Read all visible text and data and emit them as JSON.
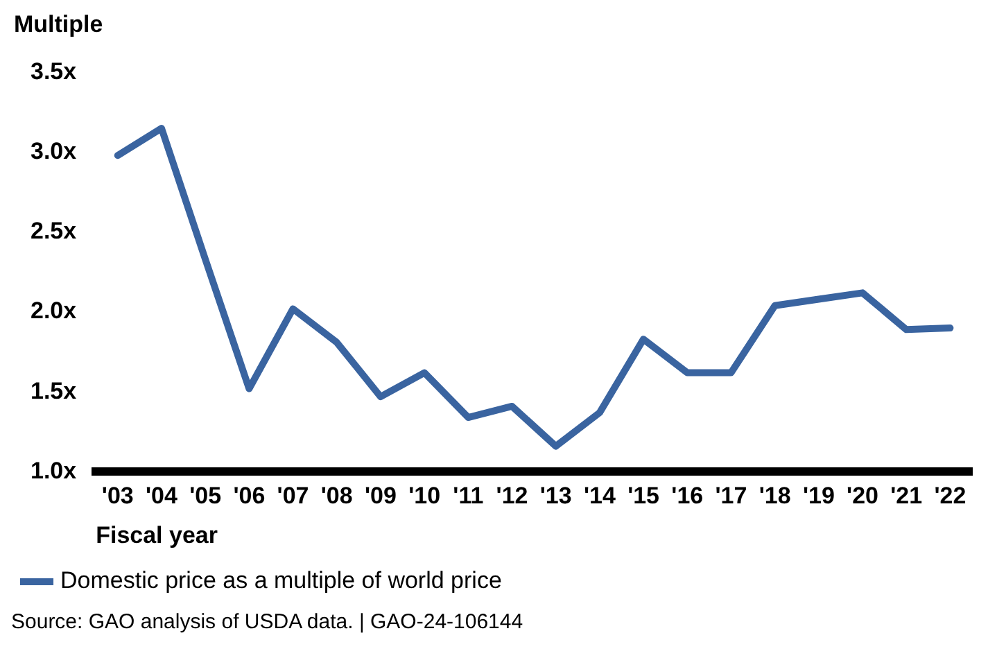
{
  "chart_data": {
    "type": "line",
    "ylabel": "Multiple",
    "xlabel": "Fiscal year",
    "categories": [
      "'03",
      "'04",
      "'05",
      "'06",
      "'07",
      "'08",
      "'09",
      "'10",
      "'11",
      "'12",
      "'13",
      "'14",
      "'15",
      "'16",
      "'17",
      "'18",
      "'19",
      "'20",
      "'21",
      "'22"
    ],
    "series": [
      {
        "name": "Domestic price as a multiple of world price",
        "color": "#3a64a0",
        "values": [
          2.98,
          3.15,
          2.33,
          1.52,
          2.02,
          1.81,
          1.47,
          1.62,
          1.34,
          1.41,
          1.16,
          1.37,
          1.83,
          1.62,
          1.62,
          2.04,
          2.08,
          2.12,
          1.89,
          1.9
        ]
      }
    ],
    "ylim": [
      1.0,
      3.5
    ],
    "yticks": [
      {
        "value": 1.0,
        "label": "1.0x"
      },
      {
        "value": 1.5,
        "label": "1.5x"
      },
      {
        "value": 2.0,
        "label": "2.0x"
      },
      {
        "value": 2.5,
        "label": "2.5x"
      },
      {
        "value": 3.0,
        "label": "3.0x"
      },
      {
        "value": 3.5,
        "label": "3.5x"
      }
    ],
    "grid": false,
    "legend": "bottom left",
    "marker": "none",
    "line_style": "solid",
    "annotations": [
      "Source: GAO analysis of USDA data.  |  GAO-24-106144"
    ]
  }
}
